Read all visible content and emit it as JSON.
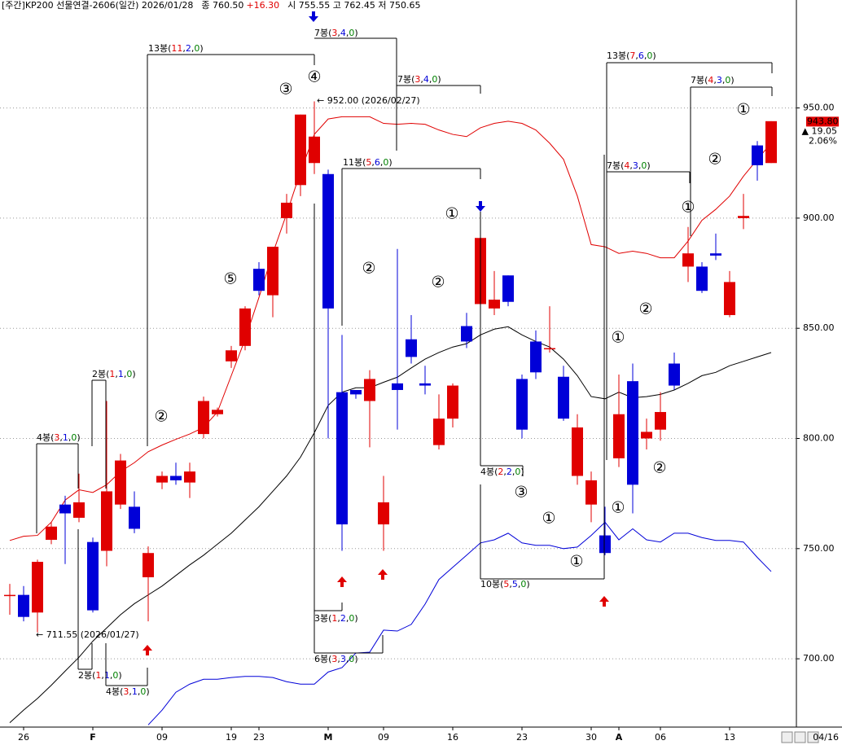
{
  "chart_data": {
    "type": "candlestick",
    "header": {
      "title": "[주간]KP200 선물연결-2606(일간) 2026/01/28",
      "close": "종 760.50",
      "change": "+16.30",
      "ohlc": "시 755.55 고 762.45 저 750.65"
    },
    "categories": [
      null,
      "26",
      null,
      null,
      null,
      null,
      "F",
      null,
      null,
      null,
      null,
      "09",
      null,
      null,
      null,
      null,
      "19",
      null,
      "23",
      null,
      null,
      null,
      null,
      "M",
      null,
      null,
      null,
      "09",
      null,
      null,
      null,
      null,
      "16",
      null,
      null,
      null,
      null,
      "23",
      null,
      null,
      null,
      null,
      "30",
      null,
      "A",
      null,
      null,
      "06",
      null,
      null,
      null,
      null,
      "13",
      null,
      null,
      null
    ],
    "last_date": "04/16",
    "up_color": "#e00000",
    "down_color": "#0000d8",
    "candles": [
      {
        "open": 729,
        "high": 734,
        "low": 720,
        "close": 729
      },
      {
        "open": 729,
        "high": 733,
        "low": 717,
        "close": 719
      },
      {
        "open": 721,
        "high": 745,
        "low": 712,
        "close": 744
      },
      {
        "open": 754,
        "high": 762,
        "low": 752,
        "close": 760
      },
      {
        "open": 770,
        "high": 774,
        "low": 743,
        "close": 766
      },
      {
        "open": 764,
        "high": 784,
        "low": 762,
        "close": 771
      },
      {
        "open": 753,
        "high": 755,
        "low": 721,
        "close": 722
      },
      {
        "open": 749,
        "high": 817,
        "low": 742,
        "close": 776
      },
      {
        "open": 770,
        "high": 793,
        "low": 768,
        "close": 790
      },
      {
        "open": 769,
        "high": 776,
        "low": 757,
        "close": 759
      },
      {
        "open": 737,
        "high": 751,
        "low": 717,
        "close": 748
      },
      {
        "open": 780,
        "high": 785,
        "low": 777,
        "close": 783
      },
      {
        "open": 783,
        "high": 789,
        "low": 779,
        "close": 781
      },
      {
        "open": 780,
        "high": 789,
        "low": 773,
        "close": 785
      },
      {
        "open": 802,
        "high": 819,
        "low": 800,
        "close": 817
      },
      {
        "open": 811,
        "high": 814,
        "low": 810,
        "close": 813
      },
      {
        "open": 835,
        "high": 842,
        "low": 832,
        "close": 840
      },
      {
        "open": 842,
        "high": 860,
        "low": 840,
        "close": 859
      },
      {
        "open": 877,
        "high": 880,
        "low": 865,
        "close": 867
      },
      {
        "open": 865,
        "high": 887,
        "low": 855,
        "close": 887
      },
      {
        "open": 900,
        "high": 911,
        "low": 893,
        "close": 907
      },
      {
        "open": 915,
        "high": 947,
        "low": 910,
        "close": 947
      },
      {
        "open": 925,
        "high": 953,
        "low": 920,
        "close": 937
      },
      {
        "open": 920,
        "high": 922,
        "low": 800,
        "close": 859
      },
      {
        "open": 821,
        "high": 847,
        "low": 749,
        "close": 761
      },
      {
        "open": 822,
        "high": 822,
        "low": 818,
        "close": 820
      },
      {
        "open": 817,
        "high": 831,
        "low": 796,
        "close": 827
      },
      {
        "open": 761,
        "high": 783,
        "low": 749,
        "close": 771
      },
      {
        "open": 825,
        "high": 886,
        "low": 804,
        "close": 822
      },
      {
        "open": 845,
        "high": 856,
        "low": 834,
        "close": 837
      },
      {
        "open": 825,
        "high": 833,
        "low": 820,
        "close": 824
      },
      {
        "open": 797,
        "high": 820,
        "low": 795,
        "close": 809
      },
      {
        "open": 809,
        "high": 825,
        "low": 805,
        "close": 824
      },
      {
        "open": 851,
        "high": 857,
        "low": 841,
        "close": 844
      },
      {
        "open": 861,
        "high": 892,
        "low": 859,
        "close": 891
      },
      {
        "open": 859,
        "high": 876,
        "low": 856,
        "close": 863
      },
      {
        "open": 874,
        "high": 874,
        "low": 860,
        "close": 862
      },
      {
        "open": 827,
        "high": 829,
        "low": 800,
        "close": 804
      },
      {
        "open": 844,
        "high": 849,
        "low": 827,
        "close": 830
      },
      {
        "open": 841,
        "high": 860,
        "low": 839,
        "close": 841
      },
      {
        "open": 828,
        "high": 833,
        "low": 808,
        "close": 809
      },
      {
        "open": 783,
        "high": 811,
        "low": 779,
        "close": 805
      },
      {
        "open": 770,
        "high": 785,
        "low": 762,
        "close": 781
      },
      {
        "open": 756,
        "high": 769,
        "low": 747,
        "close": 748
      },
      {
        "open": 791,
        "high": 829,
        "low": 787,
        "close": 811
      },
      {
        "open": 826,
        "high": 834,
        "low": 766,
        "close": 779
      },
      {
        "open": 800,
        "high": 809,
        "low": 795,
        "close": 803
      },
      {
        "open": 804,
        "high": 821,
        "low": 799,
        "close": 812
      },
      {
        "open": 834,
        "high": 839,
        "low": 822,
        "close": 824
      },
      {
        "open": 878,
        "high": 896,
        "low": 871,
        "close": 884
      },
      {
        "open": 878,
        "high": 880,
        "low": 866,
        "close": 867
      },
      {
        "open": 884,
        "high": 893,
        "low": 881,
        "close": 883
      },
      {
        "open": 856,
        "high": 876,
        "low": 855,
        "close": 871
      },
      {
        "open": 900,
        "high": 911,
        "low": 895,
        "close": 901
      },
      {
        "open": 933,
        "high": 935,
        "low": 917,
        "close": 924
      },
      {
        "open": 925,
        "high": 944,
        "low": 925,
        "close": 944
      }
    ],
    "series": [
      {
        "color": "#e00000",
        "values": [
          753.7,
          755.6,
          756,
          762,
          772,
          776.7,
          775.5,
          779,
          785,
          789,
          794,
          797,
          799.6,
          802,
          805,
          812,
          828.5,
          845,
          864,
          884,
          902,
          921,
          938,
          945,
          946,
          946,
          946,
          943,
          942.6,
          943,
          942.6,
          940,
          938,
          937,
          941,
          943,
          944,
          943,
          940,
          934,
          926.7,
          910,
          888,
          887,
          884,
          885,
          884,
          882,
          882,
          889.6,
          899,
          904,
          910,
          919,
          926.7,
          934
        ]
      },
      {
        "color": "#000000",
        "values": [
          671,
          676.7,
          682,
          688,
          694.4,
          700.7,
          708,
          714,
          720,
          725,
          729,
          733,
          737.8,
          742.6,
          747,
          752,
          757,
          763,
          769,
          776,
          783,
          791.5,
          802.6,
          815,
          821,
          823,
          823,
          825.5,
          827.8,
          832,
          836,
          839,
          841.5,
          843,
          847,
          849.6,
          850.7,
          847,
          844,
          841.5,
          836,
          828.5,
          819,
          818,
          821,
          818.5,
          819,
          820,
          822,
          825,
          828.5,
          830,
          833,
          835,
          837,
          839
        ]
      },
      {
        "color": "#0000d8",
        "values": [
          null,
          null,
          null,
          null,
          null,
          null,
          null,
          null,
          null,
          null,
          670,
          676.7,
          684.8,
          688.5,
          690.7,
          690.7,
          691.5,
          692,
          692,
          691.5,
          689.6,
          688.5,
          688.5,
          694,
          696,
          702.6,
          703,
          713,
          712.6,
          715.6,
          724.8,
          736,
          741.5,
          747,
          752.6,
          754,
          757,
          752.6,
          751.5,
          751.5,
          750,
          750.7,
          756,
          762,
          754,
          759,
          754,
          753,
          757,
          757,
          755,
          753.7,
          753.7,
          753,
          746,
          739.6
        ]
      }
    ],
    "ylim": [
      669,
      999
    ],
    "yticks": [
      {
        "value": 700,
        "label": "700.00"
      },
      {
        "value": 750,
        "label": "750.00"
      },
      {
        "value": 800,
        "label": "800.00"
      },
      {
        "value": 850,
        "label": "850.00"
      },
      {
        "value": 900,
        "label": "900.00"
      },
      {
        "value": 950,
        "label": "950.00"
      }
    ],
    "grid": true,
    "last_price": {
      "value": 943.8,
      "label": "943.80"
    },
    "last_change": "▲ 19.05",
    "last_change_pct": "2.06%",
    "high_note": "← 952.00 (2026/02/27)",
    "low_note": "← 711.55 (2026/01/27)",
    "brackets": [
      "13봉(11,2,0)",
      "7봉(3,4,0)",
      "7봉(3,4,0)",
      "11봉(5,6,0)",
      "4봉(2,2,0)",
      "10봉(5,5,0)",
      "13봉(7,6,0)",
      "7봉(4,3,0)",
      "7봉(4,3,0)",
      "4봉(3,1,0)",
      "2봉(1,1,0)",
      "2봉(1,1,0)",
      "4봉(3,1,0)",
      "3봉(1,2,0)",
      "6봉(3,3,0)"
    ],
    "waves": [
      "③",
      "④",
      "⑤",
      "②",
      "②",
      "②",
      "①",
      "③",
      "①",
      "①",
      "①",
      "①",
      "②",
      "②",
      "①",
      "②",
      "①"
    ]
  }
}
